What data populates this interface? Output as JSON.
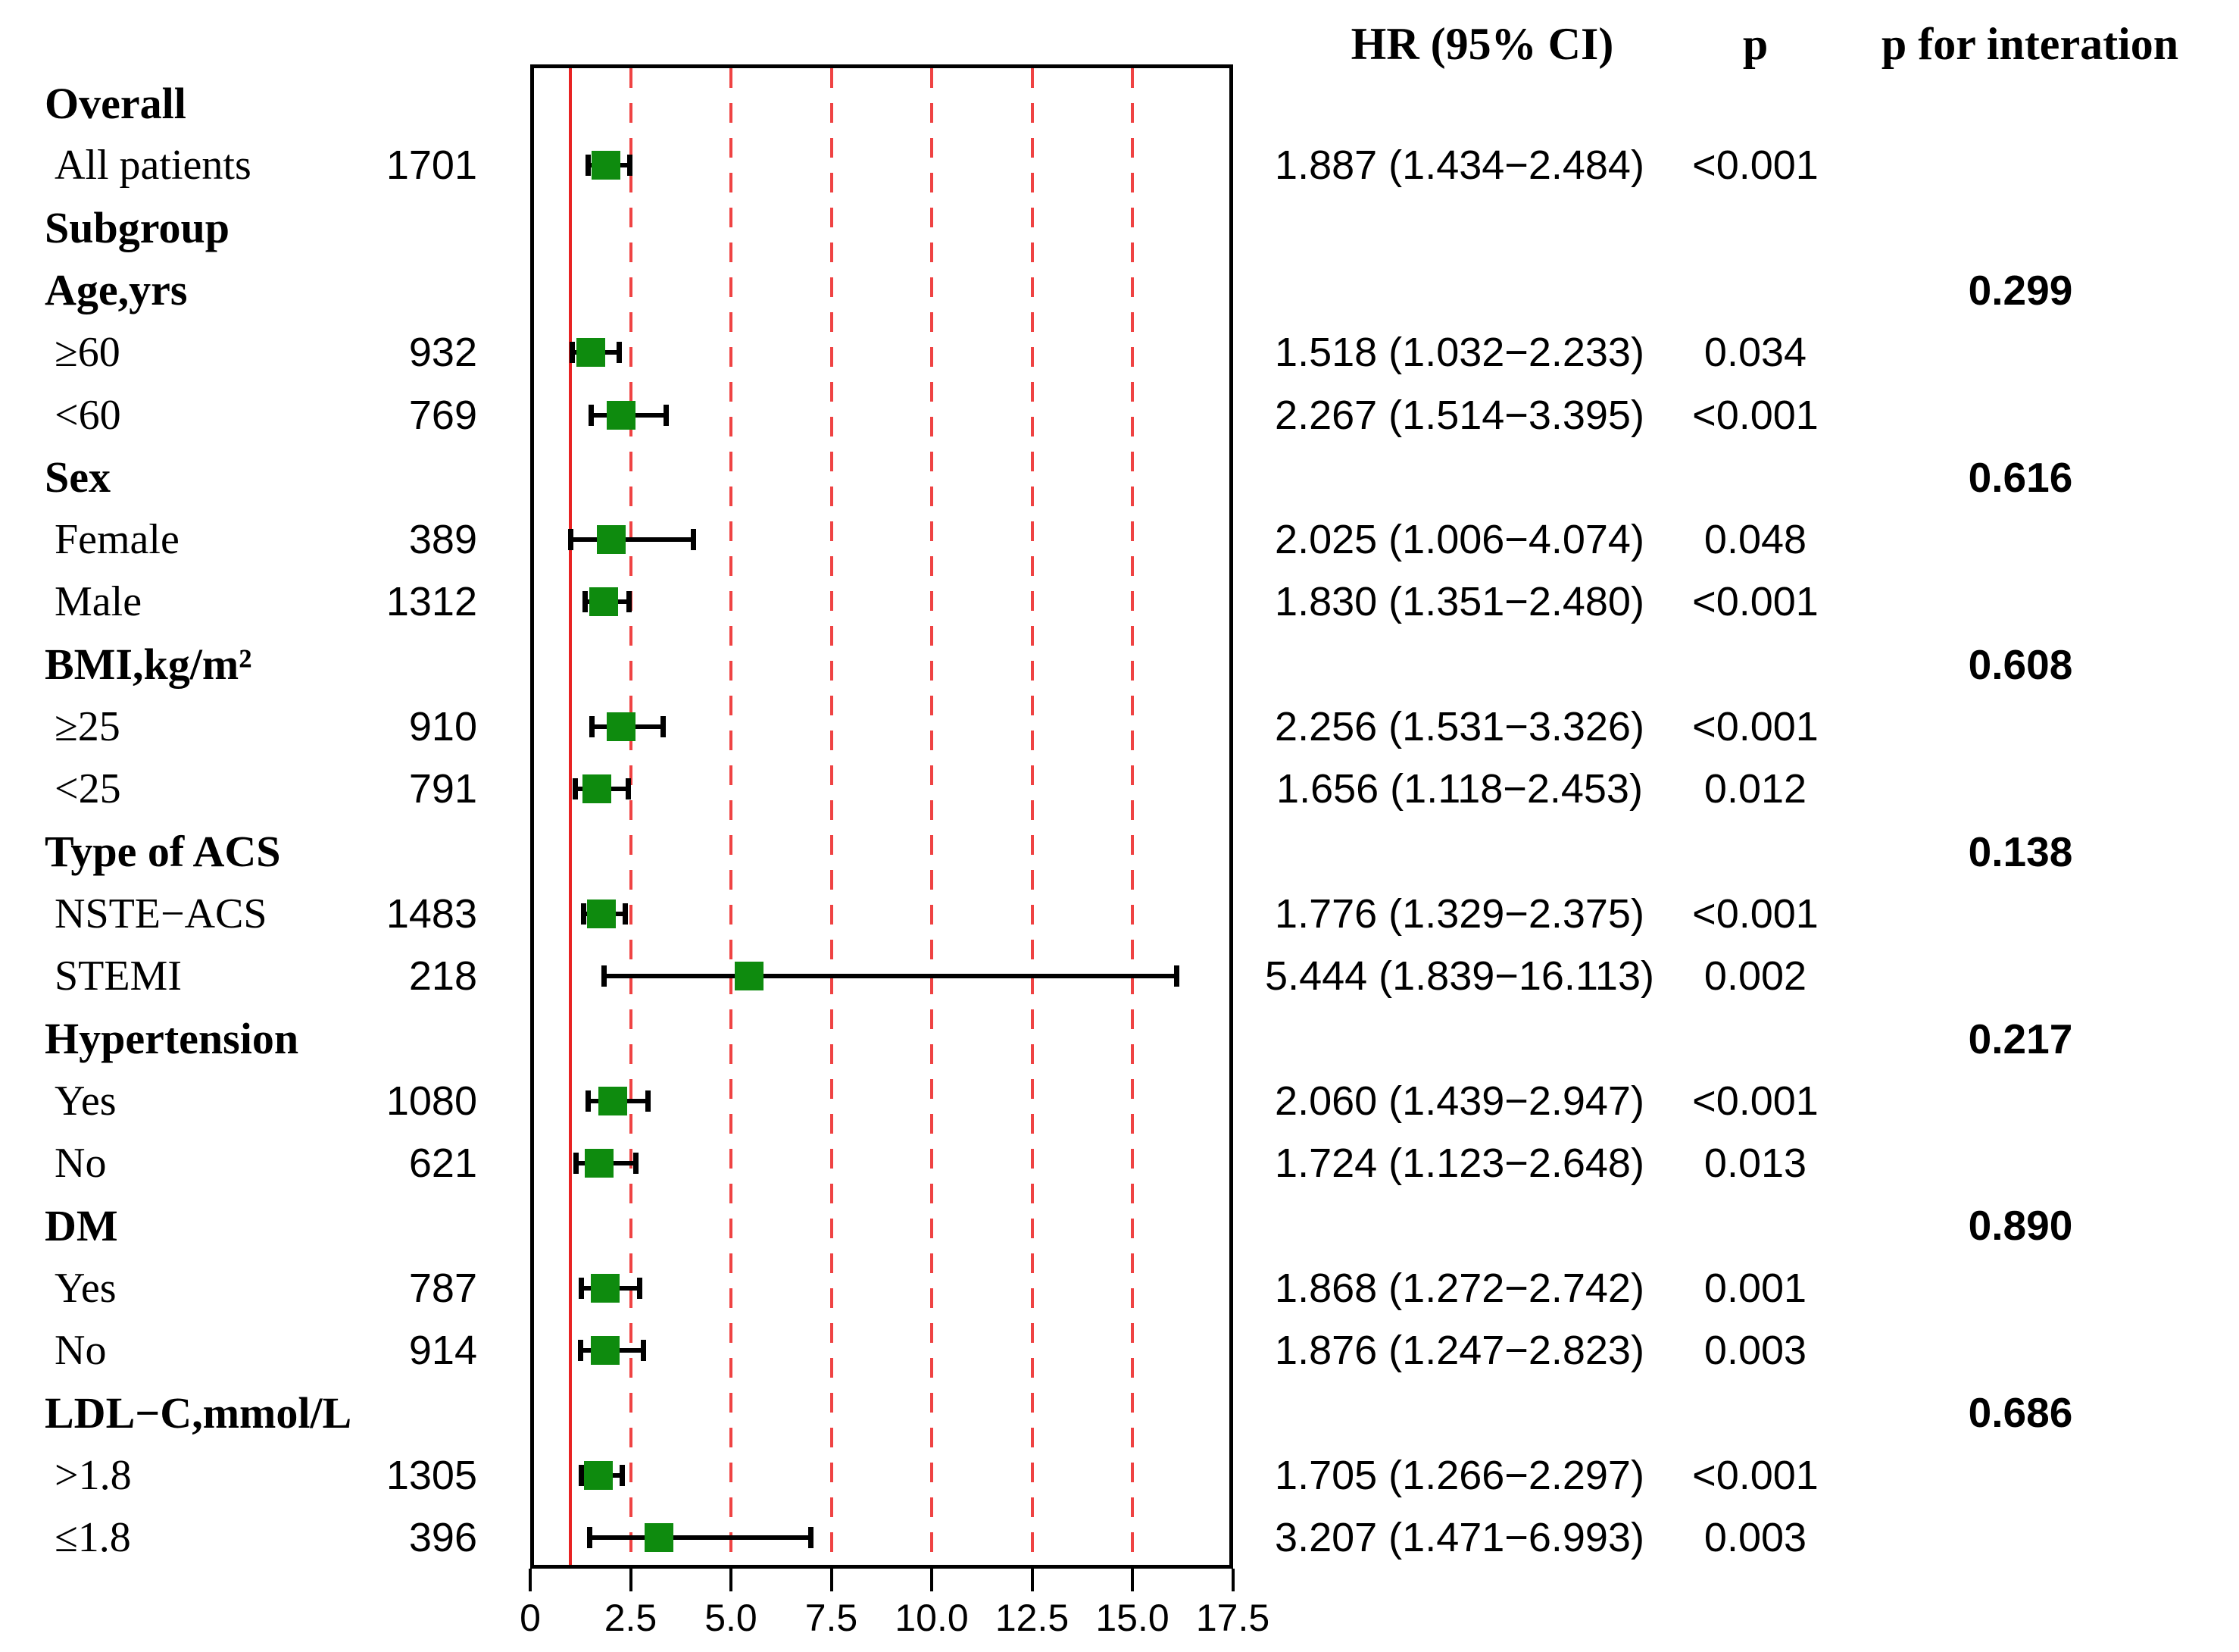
{
  "header": {
    "hr_ci": "HR (95% CI)",
    "p": "p",
    "p_interaction": "p for interation"
  },
  "colors": {
    "marker": "#0e8b0e",
    "ref_line": "#e82222",
    "grid_line": "#ef4343",
    "axis": "#000000",
    "text": "#000000",
    "background": "#ffffff"
  },
  "chart_data": {
    "type": "forest",
    "title": "",
    "xlabel": "",
    "axis": {
      "min": 0,
      "max": 17.5,
      "ref_value": 1,
      "tick_values": [
        0,
        2.5,
        5,
        7.5,
        10,
        12.5,
        15,
        17.5
      ],
      "tick_labels": [
        "0",
        "2.5",
        "5.0",
        "7.5",
        "10.0",
        "12.5",
        "15.0",
        "17.5"
      ],
      "gridline_values": [
        2.5,
        5,
        7.5,
        10,
        12.5,
        15
      ],
      "grid_style": "dashed",
      "ref_style": "solid"
    },
    "rows": [
      {
        "kind": "group",
        "label": "Overall"
      },
      {
        "kind": "item",
        "label": "All patients",
        "n": "1701",
        "hr": 1.887,
        "lo": 1.434,
        "hi": 2.484,
        "hr_ci": "1.887 (1.434−2.484)",
        "p": "<0.001"
      },
      {
        "kind": "group",
        "label": "Subgroup"
      },
      {
        "kind": "group",
        "label": "Age,yrs",
        "p_interaction": "0.299"
      },
      {
        "kind": "item",
        "label": "≥60",
        "n": "932",
        "hr": 1.518,
        "lo": 1.032,
        "hi": 2.233,
        "hr_ci": "1.518 (1.032−2.233)",
        "p": "0.034"
      },
      {
        "kind": "item",
        "label": "<60",
        "n": "769",
        "hr": 2.267,
        "lo": 1.514,
        "hi": 3.395,
        "hr_ci": "2.267 (1.514−3.395)",
        "p": "<0.001"
      },
      {
        "kind": "group",
        "label": "Sex",
        "p_interaction": "0.616"
      },
      {
        "kind": "item",
        "label": "Female",
        "n": "389",
        "hr": 2.025,
        "lo": 1.006,
        "hi": 4.074,
        "hr_ci": "2.025 (1.006−4.074)",
        "p": "0.048"
      },
      {
        "kind": "item",
        "label": "Male",
        "n": "1312",
        "hr": 1.83,
        "lo": 1.351,
        "hi": 2.48,
        "hr_ci": "1.830 (1.351−2.480)",
        "p": "<0.001"
      },
      {
        "kind": "group",
        "label": "BMI,kg/m²",
        "p_interaction": "0.608"
      },
      {
        "kind": "item",
        "label": "≥25",
        "n": "910",
        "hr": 2.256,
        "lo": 1.531,
        "hi": 3.326,
        "hr_ci": "2.256 (1.531−3.326)",
        "p": "<0.001"
      },
      {
        "kind": "item",
        "label": "<25",
        "n": "791",
        "hr": 1.656,
        "lo": 1.118,
        "hi": 2.453,
        "hr_ci": "1.656 (1.118−2.453)",
        "p": "0.012"
      },
      {
        "kind": "group",
        "label": "Type of ACS",
        "p_interaction": "0.138"
      },
      {
        "kind": "item",
        "label": "NSTE−ACS",
        "n": "1483",
        "hr": 1.776,
        "lo": 1.329,
        "hi": 2.375,
        "hr_ci": "1.776 (1.329−2.375)",
        "p": "<0.001"
      },
      {
        "kind": "item",
        "label": "STEMI",
        "n": "218",
        "hr": 5.444,
        "lo": 1.839,
        "hi": 16.113,
        "hr_ci": "5.444 (1.839−16.113)",
        "p": "0.002"
      },
      {
        "kind": "group",
        "label": "Hypertension",
        "p_interaction": "0.217"
      },
      {
        "kind": "item",
        "label": "Yes",
        "n": "1080",
        "hr": 2.06,
        "lo": 1.439,
        "hi": 2.947,
        "hr_ci": "2.060 (1.439−2.947)",
        "p": "<0.001"
      },
      {
        "kind": "item",
        "label": "No",
        "n": "621",
        "hr": 1.724,
        "lo": 1.123,
        "hi": 2.648,
        "hr_ci": "1.724 (1.123−2.648)",
        "p": "0.013"
      },
      {
        "kind": "group",
        "label": "DM",
        "p_interaction": "0.890"
      },
      {
        "kind": "item",
        "label": "Yes",
        "n": "787",
        "hr": 1.868,
        "lo": 1.272,
        "hi": 2.742,
        "hr_ci": "1.868 (1.272−2.742)",
        "p": "0.001"
      },
      {
        "kind": "item",
        "label": "No",
        "n": "914",
        "hr": 1.876,
        "lo": 1.247,
        "hi": 2.823,
        "hr_ci": "1.876 (1.247−2.823)",
        "p": "0.003"
      },
      {
        "kind": "group",
        "label": "LDL−C,mmol/L",
        "p_interaction": "0.686"
      },
      {
        "kind": "item",
        "label": ">1.8",
        "n": "1305",
        "hr": 1.705,
        "lo": 1.266,
        "hi": 2.297,
        "hr_ci": "1.705 (1.266−2.297)",
        "p": "<0.001"
      },
      {
        "kind": "item",
        "label": "≤1.8",
        "n": "396",
        "hr": 3.207,
        "lo": 1.471,
        "hi": 6.993,
        "hr_ci": "3.207 (1.471−6.993)",
        "p": "0.003"
      }
    ]
  }
}
